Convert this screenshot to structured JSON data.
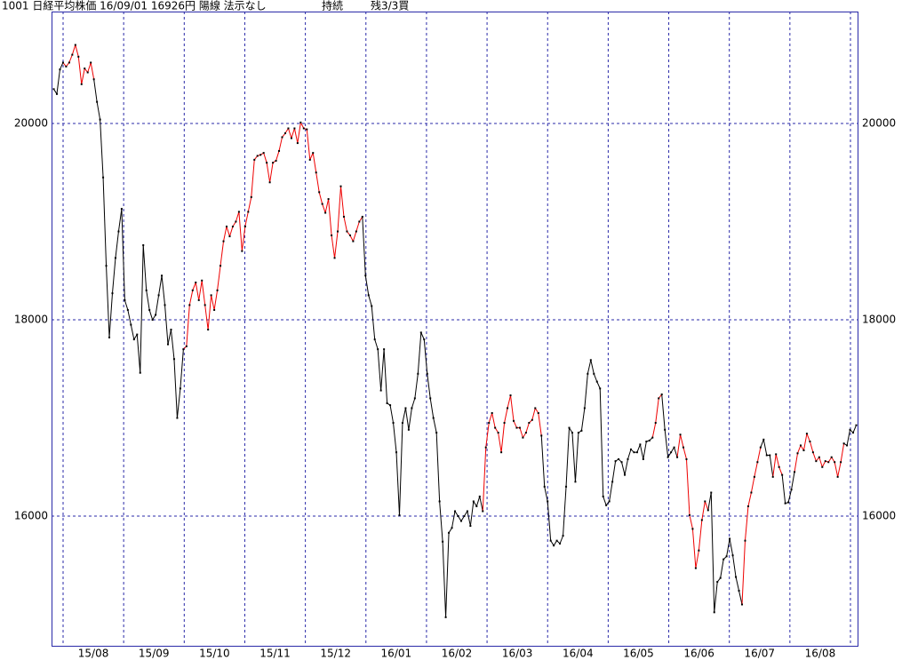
{
  "chart_data": {
    "type": "line",
    "title": "1001 日経平均株価 16/09/01 16926円 陽線 法示なし",
    "status": "持続",
    "position": "残3/3買",
    "x_labels": [
      "15/08",
      "15/09",
      "15/10",
      "15/11",
      "15/12",
      "16/01",
      "16/02",
      "16/03",
      "16/04",
      "16/05",
      "16/06",
      "16/07",
      "16/08"
    ],
    "ylim": [
      14670,
      21140
    ],
    "yticks": [
      16000,
      18000,
      20000
    ],
    "grid": true,
    "marker_color": "#000000",
    "values": [
      20350,
      20300,
      20550,
      20620,
      20580,
      20620,
      20700,
      20800,
      20680,
      20400,
      20560,
      20520,
      20620,
      20450,
      20220,
      20040,
      19450,
      18550,
      17820,
      18270,
      18630,
      18900,
      19130,
      18200,
      18100,
      17950,
      17800,
      17850,
      17460,
      18760,
      18300,
      18100,
      18000,
      18050,
      18250,
      18450,
      18150,
      17750,
      17900,
      17600,
      17000,
      17300,
      17700,
      17730,
      18150,
      18300,
      18380,
      18200,
      18400,
      18150,
      17900,
      18250,
      18100,
      18300,
      18550,
      18800,
      18950,
      18850,
      18950,
      19000,
      19100,
      18700,
      18950,
      19100,
      19250,
      19630,
      19670,
      19680,
      19700,
      19600,
      19400,
      19600,
      19620,
      19720,
      19860,
      19900,
      19950,
      19850,
      19950,
      19800,
      20010,
      19950,
      19940,
      19630,
      19700,
      19500,
      19300,
      19180,
      19090,
      19230,
      18860,
      18630,
      18900,
      19360,
      19050,
      18900,
      18860,
      18800,
      18900,
      19000,
      19050,
      18450,
      18250,
      18140,
      17800,
      17700,
      17280,
      17700,
      17150,
      17130,
      16950,
      16650,
      16010,
      16950,
      17100,
      16880,
      17100,
      17200,
      17450,
      17870,
      17800,
      17450,
      17200,
      17000,
      16850,
      16150,
      15740,
      14970,
      15830,
      15880,
      16050,
      16000,
      15950,
      16000,
      16050,
      15900,
      16150,
      16100,
      16200,
      16050,
      16700,
      16950,
      17050,
      16900,
      16850,
      16650,
      16950,
      17100,
      17230,
      16970,
      16900,
      16900,
      16800,
      16850,
      16950,
      16980,
      17100,
      17050,
      16820,
      16300,
      16150,
      15750,
      15700,
      15750,
      15720,
      15800,
      16300,
      16900,
      16850,
      16350,
      16850,
      16870,
      17100,
      17450,
      17590,
      17450,
      17370,
      17300,
      16200,
      16110,
      16150,
      16350,
      16560,
      16580,
      16550,
      16420,
      16580,
      16680,
      16650,
      16650,
      16730,
      16580,
      16760,
      16770,
      16800,
      16950,
      17200,
      17240,
      16880,
      16600,
      16650,
      16700,
      16600,
      16830,
      16700,
      16580,
      16010,
      15870,
      15470,
      15650,
      15960,
      16150,
      16060,
      16240,
      15020,
      15330,
      15370,
      15560,
      15590,
      15770,
      15600,
      15380,
      15240,
      15100,
      15750,
      16100,
      16240,
      16400,
      16550,
      16700,
      16780,
      16620,
      16620,
      16400,
      16630,
      16500,
      16420,
      16130,
      16140,
      16270,
      16450,
      16640,
      16720,
      16670,
      16840,
      16760,
      16650,
      16560,
      16600,
      16500,
      16560,
      16550,
      16600,
      16550,
      16400,
      16550,
      16740,
      16720,
      16880,
      16850,
      16926
    ],
    "colors": [
      "#000",
      "#000",
      "#000",
      "#000",
      "#e00",
      "#e00",
      "#e00",
      "#e00",
      "#e00",
      "#e00",
      "#e00",
      "#e00",
      "#e00",
      "#e00",
      "#000",
      "#000",
      "#000",
      "#000",
      "#000",
      "#000",
      "#000",
      "#000",
      "#000",
      "#000",
      "#000",
      "#000",
      "#000",
      "#000",
      "#000",
      "#000",
      "#000",
      "#000",
      "#000",
      "#000",
      "#000",
      "#000",
      "#000",
      "#000",
      "#000",
      "#000",
      "#000",
      "#000",
      "#000",
      "#e00",
      "#e00",
      "#e00",
      "#e00",
      "#e00",
      "#e00",
      "#e00",
      "#e00",
      "#e00",
      "#e00",
      "#e00",
      "#e00",
      "#e00",
      "#e00",
      "#e00",
      "#e00",
      "#e00",
      "#e00",
      "#e00",
      "#e00",
      "#e00",
      "#e00",
      "#e00",
      "#e00",
      "#e00",
      "#e00",
      "#e00",
      "#e00",
      "#e00",
      "#e00",
      "#e00",
      "#e00",
      "#e00",
      "#e00",
      "#e00",
      "#e00",
      "#e00",
      "#e00",
      "#e00",
      "#e00",
      "#e00",
      "#e00",
      "#e00",
      "#e00",
      "#e00",
      "#e00",
      "#e00",
      "#e00",
      "#e00",
      "#e00",
      "#e00",
      "#e00",
      "#e00",
      "#e00",
      "#e00",
      "#e00",
      "#e00",
      "#e00",
      "#000",
      "#000",
      "#000",
      "#000",
      "#000",
      "#000",
      "#000",
      "#000",
      "#000",
      "#000",
      "#000",
      "#000",
      "#000",
      "#000",
      "#000",
      "#000",
      "#000",
      "#000",
      "#000",
      "#000",
      "#000",
      "#000",
      "#000",
      "#000",
      "#000",
      "#000",
      "#000",
      "#000",
      "#000",
      "#000",
      "#000",
      "#000",
      "#000",
      "#000",
      "#000",
      "#000",
      "#000",
      "#000",
      "#000",
      "#e00",
      "#e00",
      "#e00",
      "#e00",
      "#e00",
      "#e00",
      "#e00",
      "#e00",
      "#e00",
      "#e00",
      "#e00",
      "#e00",
      "#e00",
      "#e00",
      "#e00",
      "#e00",
      "#e00",
      "#e00",
      "#e00",
      "#000",
      "#000",
      "#000",
      "#000",
      "#000",
      "#000",
      "#000",
      "#000",
      "#000",
      "#000",
      "#000",
      "#000",
      "#000",
      "#000",
      "#000",
      "#000",
      "#000",
      "#000",
      "#000",
      "#000",
      "#000",
      "#000",
      "#000",
      "#000",
      "#000",
      "#000",
      "#000",
      "#000",
      "#000",
      "#000",
      "#000",
      "#000",
      "#000",
      "#000",
      "#000",
      "#000",
      "#e00",
      "#e00",
      "#e00",
      "#000",
      "#000",
      "#000",
      "#000",
      "#000",
      "#e00",
      "#e00",
      "#e00",
      "#e00",
      "#e00",
      "#e00",
      "#e00",
      "#e00",
      "#e00",
      "#e00",
      "#000",
      "#000",
      "#000",
      "#000",
      "#000",
      "#000",
      "#000",
      "#000",
      "#000",
      "#000",
      "#000",
      "#e00",
      "#e00",
      "#e00",
      "#e00",
      "#e00",
      "#e00",
      "#000",
      "#000",
      "#000",
      "#000",
      "#e00",
      "#e00",
      "#e00",
      "#000",
      "#000",
      "#000",
      "#000",
      "#e00",
      "#e00",
      "#e00",
      "#e00",
      "#e00",
      "#e00",
      "#e00",
      "#e00",
      "#e00",
      "#e00",
      "#e00",
      "#e00",
      "#e00",
      "#e00",
      "#e00",
      "#e00",
      "#000",
      "#000",
      "#000",
      "#000"
    ]
  }
}
